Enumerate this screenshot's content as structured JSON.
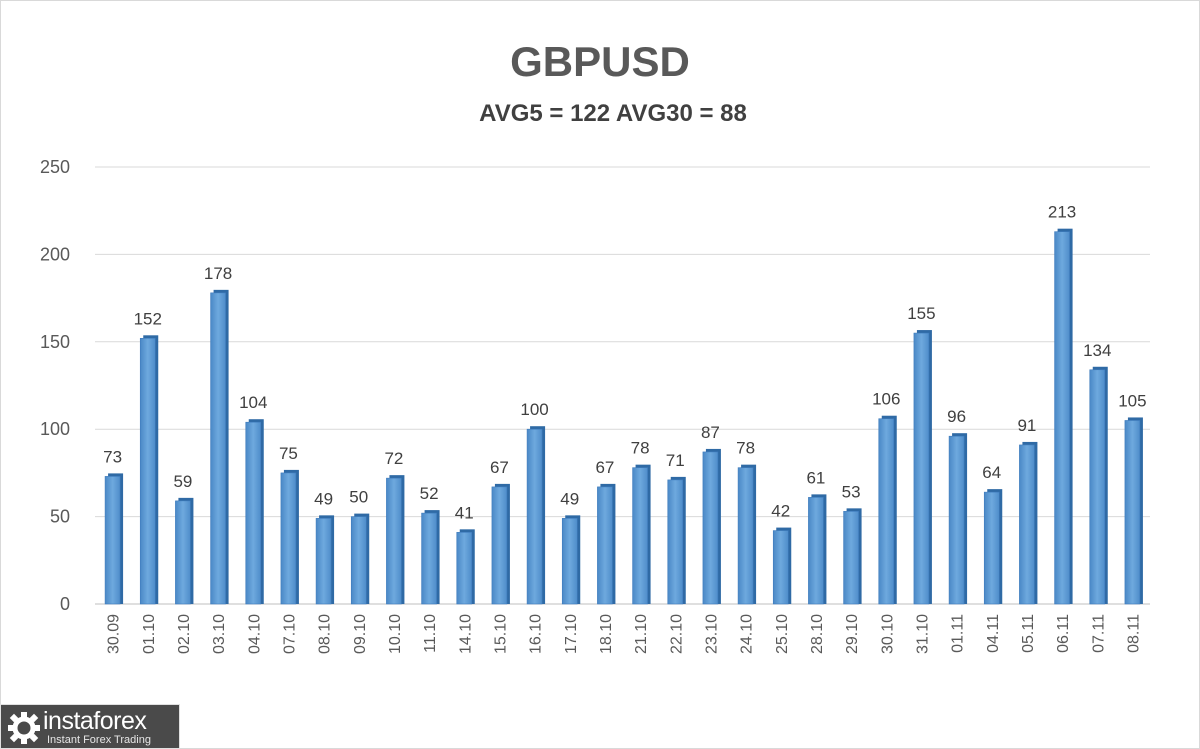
{
  "chart_data": {
    "type": "bar",
    "title": "GBPUSD",
    "subtitle": "AVG5 = 122 AVG30 = 88",
    "categories": [
      "30.09",
      "01.10",
      "02.10",
      "03.10",
      "04.10",
      "07.10",
      "08.10",
      "09.10",
      "10.10",
      "11.10",
      "14.10",
      "15.10",
      "16.10",
      "17.10",
      "18.10",
      "21.10",
      "22.10",
      "23.10",
      "24.10",
      "25.10",
      "28.10",
      "29.10",
      "30.10",
      "31.10",
      "01.11",
      "04.11",
      "05.11",
      "06.11",
      "07.11",
      "08.11"
    ],
    "values": [
      73,
      152,
      59,
      178,
      104,
      75,
      49,
      50,
      72,
      52,
      41,
      67,
      100,
      49,
      67,
      78,
      71,
      87,
      78,
      42,
      61,
      53,
      106,
      155,
      96,
      64,
      91,
      213,
      134,
      105
    ],
    "ylim": [
      0,
      250
    ],
    "yticks": [
      0,
      50,
      100,
      150,
      200,
      250
    ],
    "grid": true,
    "legend": "none",
    "bar_color": "#5b9bd5"
  },
  "watermark": {
    "brand": "instaforex",
    "tagline": "Instant Forex Trading"
  }
}
